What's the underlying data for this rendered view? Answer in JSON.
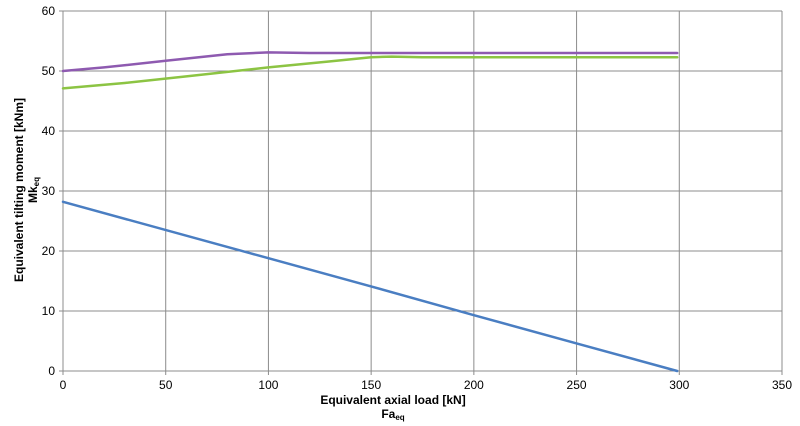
{
  "chart_data": {
    "type": "line",
    "title": "",
    "xlabel": "Equivalent axial load [kN]",
    "xlabel_symbol": {
      "main": "Fa",
      "sub": "eq"
    },
    "ylabel": "Equivalent tilting moment [kNm]",
    "ylabel_symbol": {
      "main": "Mk",
      "sub": "eq"
    },
    "xlim": [
      0,
      350
    ],
    "ylim": [
      0,
      60
    ],
    "xticks": [
      "0",
      "50",
      "100",
      "150",
      "200",
      "250",
      "300",
      "350"
    ],
    "yticks": [
      "0",
      "10",
      "20",
      "30",
      "40",
      "50",
      "60"
    ],
    "grid": true,
    "legend": "none",
    "series": [
      {
        "color": "#4a7ec2",
        "points": [
          [
            0,
            28.2
          ],
          [
            100,
            18.8
          ],
          [
            150,
            14.1
          ],
          [
            200,
            9.3
          ],
          [
            250,
            4.6
          ],
          [
            299,
            0
          ]
        ]
      },
      {
        "color": "#8e5ab0",
        "points": [
          [
            0,
            50.0
          ],
          [
            20,
            50.6
          ],
          [
            50,
            51.7
          ],
          [
            80,
            52.8
          ],
          [
            100,
            53.1
          ],
          [
            120,
            53.0
          ],
          [
            150,
            53.0
          ],
          [
            200,
            53.0
          ],
          [
            250,
            53.0
          ],
          [
            299,
            53.0
          ]
        ]
      },
      {
        "color": "#8cc443",
        "points": [
          [
            0,
            47.1
          ],
          [
            30,
            48.0
          ],
          [
            60,
            49.1
          ],
          [
            100,
            50.6
          ],
          [
            130,
            51.6
          ],
          [
            150,
            52.3
          ],
          [
            160,
            52.4
          ],
          [
            175,
            52.3
          ],
          [
            200,
            52.3
          ],
          [
            250,
            52.3
          ],
          [
            299,
            52.3
          ]
        ]
      }
    ]
  }
}
